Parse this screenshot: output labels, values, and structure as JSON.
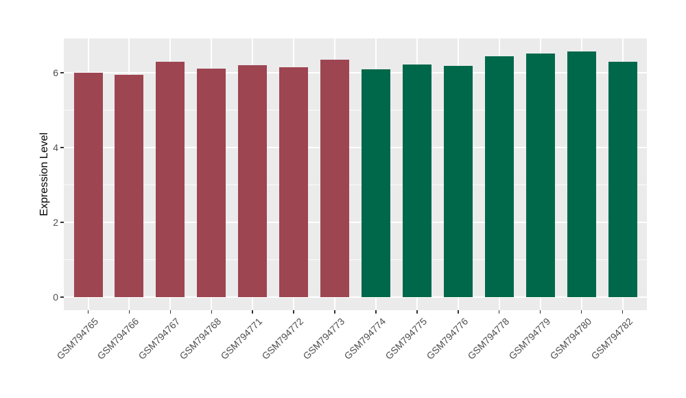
{
  "chart_data": {
    "type": "bar",
    "title": "",
    "xlabel": "",
    "ylabel": "Expression Level",
    "ylim": [
      -0.35,
      6.92
    ],
    "y_major_ticks": [
      0,
      2,
      4,
      6
    ],
    "y_minor_gridlines": [
      1,
      3,
      5
    ],
    "grid": "on",
    "legend_position": "none",
    "categories": [
      "GSM794765",
      "GSM794766",
      "GSM794767",
      "GSM794768",
      "GSM794771",
      "GSM794772",
      "GSM794773",
      "GSM794774",
      "GSM794775",
      "GSM794776",
      "GSM794778",
      "GSM794779",
      "GSM794780",
      "GSM794782"
    ],
    "bars": [
      {
        "label": "GSM794765",
        "value": 6.0,
        "group": "group1"
      },
      {
        "label": "GSM794766",
        "value": 5.94,
        "group": "group1"
      },
      {
        "label": "GSM794767",
        "value": 6.3,
        "group": "group1"
      },
      {
        "label": "GSM794768",
        "value": 6.11,
        "group": "group1"
      },
      {
        "label": "GSM794771",
        "value": 6.2,
        "group": "group1"
      },
      {
        "label": "GSM794772",
        "value": 6.15,
        "group": "group1"
      },
      {
        "label": "GSM794773",
        "value": 6.35,
        "group": "group1"
      },
      {
        "label": "GSM794774",
        "value": 6.09,
        "group": "group2"
      },
      {
        "label": "GSM794775",
        "value": 6.22,
        "group": "group2"
      },
      {
        "label": "GSM794776",
        "value": 6.19,
        "group": "group2"
      },
      {
        "label": "GSM794778",
        "value": 6.44,
        "group": "group2"
      },
      {
        "label": "GSM794779",
        "value": 6.51,
        "group": "group2"
      },
      {
        "label": "GSM794780",
        "value": 6.58,
        "group": "group2"
      },
      {
        "label": "GSM794782",
        "value": 6.3,
        "group": "group2"
      }
    ],
    "colors": {
      "group1": "#9E4552",
      "group2": "#00684A",
      "panel_background": "#EBEBEB",
      "gridline_major": "#FFFFFF",
      "gridline_minor": "#FFFFFF",
      "tick_mark": "#333333",
      "axis_text": "#4D4D4D",
      "axis_title": "#000000",
      "figure_background": "#FFFFFF"
    }
  }
}
